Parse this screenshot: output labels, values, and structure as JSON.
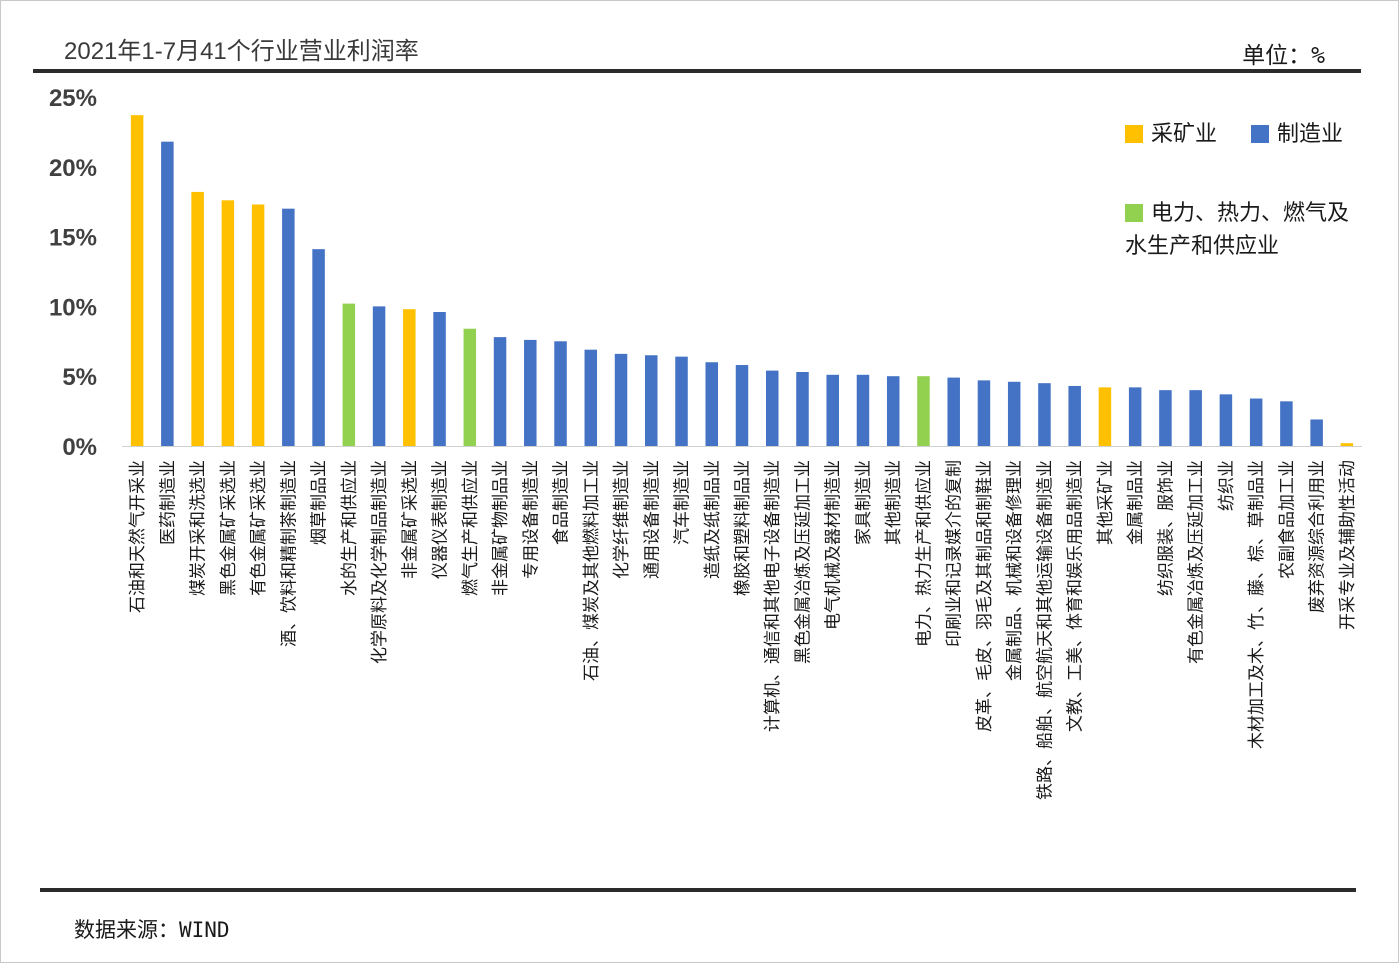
{
  "header": {
    "title": "2021年1-7月41个行业营业利润率",
    "unit": "单位：%"
  },
  "footer": {
    "source": "数据来源：WIND"
  },
  "legend": {
    "items": [
      {
        "label": "采矿业",
        "color": "#FFC000"
      },
      {
        "label": "制造业",
        "color": "#4472C4"
      },
      {
        "label": "电力、热力、燃气及",
        "label2": "水生产和供应业",
        "color": "#92D050"
      }
    ]
  },
  "chart_data": {
    "type": "bar",
    "title": "2021年1-7月41个行业营业利润率",
    "ylabel": "单位：%",
    "ylim": [
      0,
      25
    ],
    "yticks": [
      "0%",
      "5%",
      "10%",
      "15%",
      "20%",
      "25%"
    ],
    "ytick_values": [
      0,
      5,
      10,
      15,
      20,
      25
    ],
    "colors": {
      "mining": "#FFC000",
      "manufacturing": "#4472C4",
      "utilities": "#92D050"
    },
    "categories": [
      "石油和天然气开采业",
      "医药制造业",
      "煤炭开采和洗选业",
      "黑色金属矿采选业",
      "有色金属矿采选业",
      "酒、饮料和精制茶制造业",
      "烟草制品业",
      "水的生产和供应业",
      "化学原料及化学制品制造业",
      "非金属矿采选业",
      "仪器仪表制造业",
      "燃气生产和供应业",
      "非金属矿物制品业",
      "专用设备制造业",
      "食品制造业",
      "石油、煤炭及其他燃料加工业",
      "化学纤维制造业",
      "通用设备制造业",
      "汽车制造业",
      "造纸及纸制品业",
      "橡胶和塑料制品业",
      "计算机、通信和其他电子设备制造业",
      "黑色金属冶炼及压延加工业",
      "电气机械及器材制造业",
      "家具制造业",
      "其他制造业",
      "电力、热力生产和供应业",
      "印刷业和记录媒介的复制",
      "皮革、毛皮、羽毛及其制品和制鞋业",
      "金属制品、机械和设备修理业",
      "铁路、船舶、航空航天和其他运输设备制造业",
      "文教、工美、体育和娱乐用品制造业",
      "其他采矿业",
      "金属制品业",
      "纺织服装、服饰业",
      "有色金属冶炼及压延加工业",
      "纺织业",
      "木材加工及木、竹、藤、棕、草制品业",
      "农副食品加工业",
      "废弃资源综合利用业",
      "开采专业及辅助性活动"
    ],
    "values": [
      23.7,
      21.8,
      18.2,
      17.6,
      17.3,
      17.0,
      14.1,
      10.2,
      10.0,
      9.8,
      9.6,
      8.4,
      7.8,
      7.6,
      7.5,
      6.9,
      6.6,
      6.5,
      6.4,
      6.0,
      5.8,
      5.4,
      5.3,
      5.1,
      5.1,
      5.0,
      5.0,
      4.9,
      4.7,
      4.6,
      4.5,
      4.3,
      4.2,
      4.2,
      4.0,
      4.0,
      3.7,
      3.4,
      3.2,
      1.9,
      0.2
    ],
    "sectors": [
      "mining",
      "manufacturing",
      "mining",
      "mining",
      "mining",
      "manufacturing",
      "manufacturing",
      "utilities",
      "manufacturing",
      "mining",
      "manufacturing",
      "utilities",
      "manufacturing",
      "manufacturing",
      "manufacturing",
      "manufacturing",
      "manufacturing",
      "manufacturing",
      "manufacturing",
      "manufacturing",
      "manufacturing",
      "manufacturing",
      "manufacturing",
      "manufacturing",
      "manufacturing",
      "manufacturing",
      "utilities",
      "manufacturing",
      "manufacturing",
      "manufacturing",
      "manufacturing",
      "manufacturing",
      "mining",
      "manufacturing",
      "manufacturing",
      "manufacturing",
      "manufacturing",
      "manufacturing",
      "manufacturing",
      "manufacturing",
      "mining"
    ]
  }
}
